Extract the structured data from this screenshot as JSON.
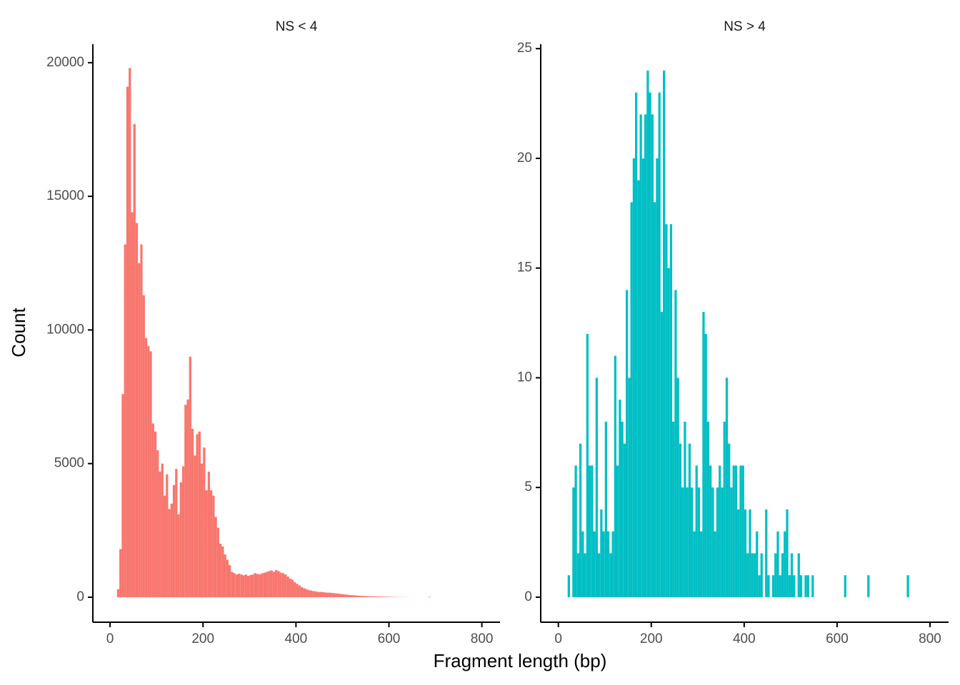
{
  "chart_data": [
    {
      "type": "histogram",
      "title": "NS < 4",
      "ylabel": "Count",
      "xlabel": "Fragment length (bp)",
      "color": "#F8766D",
      "bins": [
        15,
        20,
        25,
        30,
        35,
        40,
        45,
        50,
        55,
        60,
        65,
        70,
        75,
        80,
        85,
        90,
        95,
        100,
        105,
        110,
        115,
        120,
        125,
        130,
        135,
        140,
        145,
        150,
        155,
        160,
        165,
        170,
        175,
        180,
        185,
        190,
        195,
        200,
        205,
        210,
        215,
        220,
        225,
        230,
        235,
        240,
        245,
        250,
        255,
        260,
        265,
        270,
        275,
        280,
        285,
        290,
        295,
        300,
        305,
        310,
        315,
        320,
        325,
        330,
        335,
        340,
        345,
        350,
        355,
        360,
        365,
        370,
        375,
        380,
        385,
        390,
        395,
        400,
        405,
        410,
        415,
        420,
        425,
        430,
        435,
        440,
        445,
        450,
        455,
        460,
        465,
        470,
        475,
        480,
        485,
        490,
        495,
        500,
        505,
        510,
        515,
        520,
        525,
        530,
        535,
        540,
        545,
        550,
        555,
        560,
        565,
        570,
        575,
        580,
        585,
        590,
        595,
        600,
        605,
        610,
        615,
        620,
        625,
        630,
        635,
        640,
        645,
        650,
        655,
        660,
        665,
        670,
        675,
        680,
        685,
        690
      ],
      "values": [
        300,
        1800,
        7600,
        13200,
        19100,
        19800,
        14400,
        17700,
        14000,
        12500,
        13200,
        11300,
        9700,
        9400,
        9200,
        6500,
        6200,
        5500,
        4700,
        5000,
        3800,
        4600,
        3300,
        3500,
        4200,
        4800,
        3100,
        4300,
        4900,
        7200,
        7400,
        9000,
        6300,
        5300,
        6100,
        6200,
        5000,
        5600,
        4000,
        4700,
        4000,
        3800,
        3000,
        2600,
        2000,
        1900,
        1600,
        1400,
        1200,
        950,
        900,
        850,
        880,
        850,
        820,
        850,
        800,
        830,
        850,
        900,
        870,
        860,
        900,
        920,
        950,
        980,
        1000,
        950,
        1020,
        980,
        920,
        900,
        850,
        780,
        700,
        650,
        560,
        500,
        440,
        380,
        340,
        300,
        270,
        250,
        230,
        220,
        200,
        200,
        190,
        180,
        170,
        170,
        160,
        150,
        140,
        130,
        120,
        110,
        100,
        90,
        80,
        75,
        70,
        60,
        55,
        50,
        45,
        40,
        38,
        35,
        32,
        30,
        28,
        25,
        22,
        20,
        18,
        15,
        12,
        10,
        8,
        7,
        6,
        5,
        4,
        3,
        0,
        0,
        0,
        0,
        0,
        0,
        0,
        0,
        20
      ],
      "xlim": [
        -37,
        839
      ],
      "ylim": [
        -935,
        20690
      ],
      "xticks": [
        0,
        200,
        400,
        600,
        800
      ],
      "yticks": [
        0,
        5000,
        10000,
        15000,
        20000
      ]
    },
    {
      "type": "histogram",
      "title": "NS > 4",
      "color": "#00BFC4",
      "bins": [
        20,
        25,
        30,
        35,
        40,
        45,
        50,
        55,
        60,
        65,
        70,
        75,
        80,
        85,
        90,
        95,
        100,
        105,
        110,
        115,
        120,
        125,
        130,
        135,
        140,
        145,
        150,
        155,
        160,
        165,
        170,
        175,
        180,
        185,
        190,
        195,
        200,
        205,
        210,
        215,
        220,
        225,
        230,
        235,
        240,
        245,
        250,
        255,
        260,
        265,
        270,
        275,
        280,
        285,
        290,
        295,
        300,
        305,
        310,
        315,
        320,
        325,
        330,
        335,
        340,
        345,
        350,
        355,
        360,
        365,
        370,
        375,
        380,
        385,
        390,
        395,
        400,
        405,
        410,
        415,
        420,
        425,
        430,
        435,
        440,
        445,
        450,
        455,
        460,
        465,
        470,
        475,
        480,
        485,
        490,
        495,
        500,
        505,
        510,
        515,
        520,
        525,
        530,
        535,
        540,
        545,
        550,
        555,
        560,
        565,
        570,
        575,
        580,
        585,
        590,
        595,
        600,
        605,
        610,
        615,
        620,
        625,
        630,
        635,
        640,
        645,
        650,
        655,
        660,
        665,
        670,
        675,
        680,
        685,
        690,
        695,
        700,
        705,
        710,
        715,
        720,
        725,
        730,
        735,
        740,
        745,
        750,
        755
      ],
      "values": [
        1,
        0,
        5,
        6,
        2,
        7,
        3,
        2,
        12,
        6,
        6,
        3,
        10,
        2,
        4,
        3,
        8,
        3,
        2,
        3,
        11,
        6,
        9,
        8,
        7,
        14,
        10,
        18,
        20,
        23,
        19,
        22,
        20,
        22,
        24,
        23,
        22,
        18,
        20,
        23,
        13,
        24,
        17,
        15,
        17,
        8,
        14,
        10,
        7,
        5,
        8,
        5,
        7,
        5,
        3,
        6,
        5,
        3,
        13,
        12,
        8,
        6,
        5,
        3,
        5,
        6,
        5,
        8,
        10,
        7,
        5,
        6,
        6,
        4,
        6,
        6,
        4,
        2,
        4,
        2,
        2,
        3,
        1,
        2,
        0,
        4,
        1,
        0,
        1,
        2,
        3,
        1,
        2,
        3,
        4,
        1,
        2,
        1,
        0,
        2,
        1,
        0,
        1,
        1,
        0,
        1,
        0,
        0,
        0,
        0,
        0,
        0,
        0,
        0,
        0,
        0,
        0,
        0,
        0,
        1,
        0,
        0,
        0,
        0,
        0,
        0,
        0,
        0,
        0,
        1,
        0,
        0,
        0,
        0,
        0,
        0,
        0,
        0,
        0,
        0,
        0,
        0,
        0,
        0,
        0,
        0,
        1
      ],
      "xlim": [
        -38,
        840
      ],
      "ylim": [
        -1.14,
        25.2
      ],
      "xticks": [
        0,
        200,
        400,
        600,
        800
      ],
      "yticks": [
        0,
        5,
        10,
        15,
        20,
        25
      ]
    }
  ]
}
